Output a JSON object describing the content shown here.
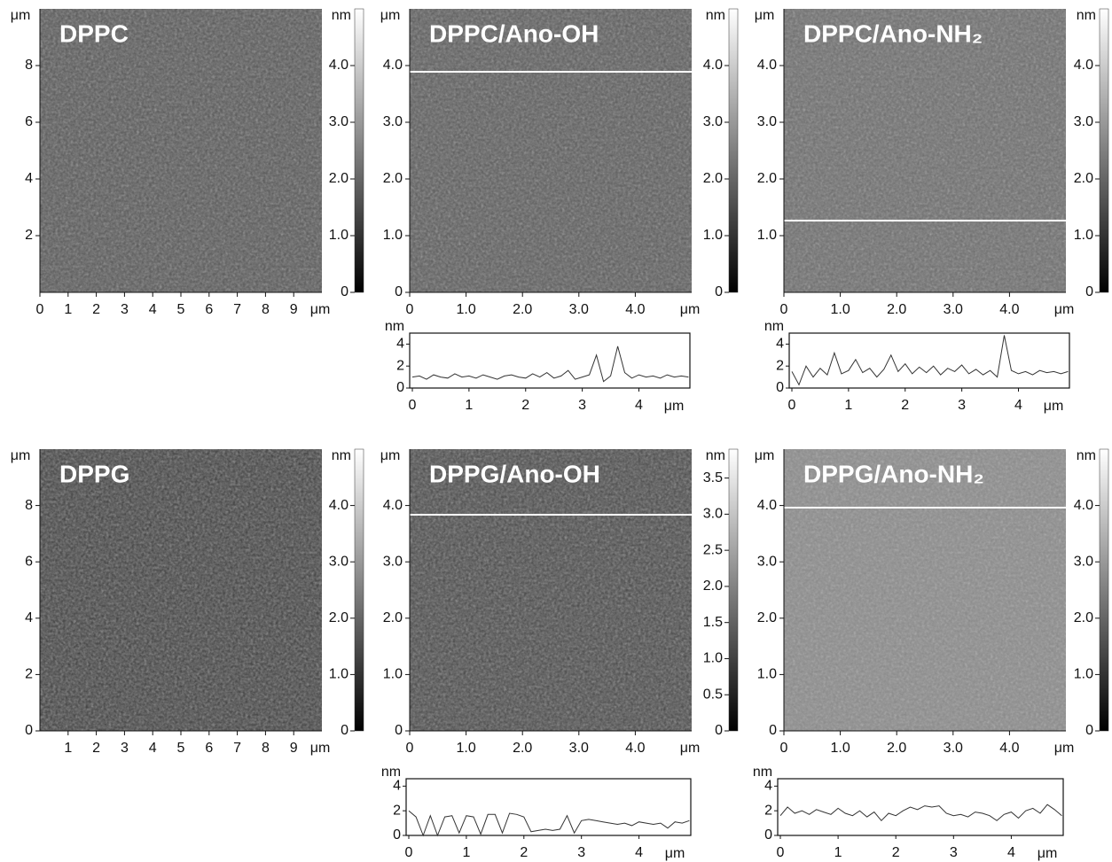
{
  "chart_data": [
    {
      "type": "image",
      "title": "DPPC",
      "x_unit": "μm",
      "y_unit": "μm",
      "xlim": [
        0,
        10
      ],
      "ylim": [
        0,
        10
      ],
      "xticks": [
        0,
        1,
        2,
        3,
        4,
        5,
        6,
        7,
        8,
        9
      ],
      "yticks": [
        2,
        4,
        6,
        8
      ],
      "colorbar": {
        "label": "nm",
        "lim": [
          0,
          5
        ],
        "ticks": [
          0,
          {
            "value": 1,
            "label": "1.0"
          },
          {
            "value": 2,
            "label": "2.0"
          },
          {
            "value": 3,
            "label": "3.0"
          },
          {
            "value": 4,
            "label": "4.0"
          }
        ]
      }
    },
    {
      "type": "image",
      "title": "DPPC/Ano-OH",
      "x_unit": "μm",
      "y_unit": "μm",
      "xlim": [
        0,
        5
      ],
      "ylim": [
        0,
        5
      ],
      "xticks": [
        0,
        {
          "value": 1,
          "label": "1.0"
        },
        {
          "value": 2,
          "label": "2.0"
        },
        {
          "value": 3,
          "label": "3.0"
        },
        {
          "value": 4,
          "label": "4.0"
        }
      ],
      "yticks": [
        0,
        {
          "value": 1,
          "label": "1.0"
        },
        {
          "value": 2,
          "label": "2.0"
        },
        {
          "value": 3,
          "label": "3.0"
        },
        {
          "value": 4,
          "label": "4.0"
        }
      ],
      "colorbar": {
        "label": "nm",
        "lim": [
          0,
          5
        ],
        "ticks": [
          0,
          {
            "value": 1,
            "label": "1.0"
          },
          {
            "value": 2,
            "label": "2.0"
          },
          {
            "value": 3,
            "label": "3.0"
          },
          {
            "value": 4,
            "label": "4.0"
          }
        ]
      }
    },
    {
      "type": "image",
      "title": "DPPC/Ano-NH₂",
      "x_unit": "μm",
      "y_unit": "μm",
      "xlim": [
        0,
        5
      ],
      "ylim": [
        0,
        5
      ],
      "xticks": [
        0,
        {
          "value": 1,
          "label": "1.0"
        },
        {
          "value": 2,
          "label": "2.0"
        },
        {
          "value": 3,
          "label": "3.0"
        },
        {
          "value": 4,
          "label": "4.0"
        }
      ],
      "yticks": [
        {
          "value": 1,
          "label": "1.0"
        },
        {
          "value": 2,
          "label": "2.0"
        },
        {
          "value": 3,
          "label": "3.0"
        },
        {
          "value": 4,
          "label": "4.0"
        }
      ],
      "colorbar": {
        "label": "nm",
        "lim": [
          0,
          5
        ],
        "ticks": [
          0,
          {
            "value": 1,
            "label": "1.0"
          },
          {
            "value": 2,
            "label": "2.0"
          },
          {
            "value": 3,
            "label": "3.0"
          },
          {
            "value": 4,
            "label": "4.0"
          }
        ]
      }
    },
    {
      "type": "image",
      "title": "DPPG",
      "x_unit": "μm",
      "y_unit": "μm",
      "xlim": [
        0,
        10
      ],
      "ylim": [
        0,
        10
      ],
      "xticks": [
        1,
        2,
        3,
        4,
        5,
        6,
        7,
        8,
        9
      ],
      "yticks": [
        0,
        2,
        4,
        6,
        8
      ],
      "colorbar": {
        "label": "nm",
        "lim": [
          0,
          5
        ],
        "ticks": [
          0,
          {
            "value": 1,
            "label": "1.0"
          },
          {
            "value": 2,
            "label": "2.0"
          },
          {
            "value": 3,
            "label": "3.0"
          },
          {
            "value": 4,
            "label": "4.0"
          }
        ]
      }
    },
    {
      "type": "image",
      "title": "DPPG/Ano-OH",
      "x_unit": "μm",
      "y_unit": "μm",
      "xlim": [
        0,
        5
      ],
      "ylim": [
        0,
        5
      ],
      "xticks": [
        0,
        {
          "value": 1,
          "label": "1.0"
        },
        {
          "value": 2,
          "label": "2.0"
        },
        {
          "value": 3,
          "label": "3.0"
        },
        {
          "value": 4,
          "label": "4.0"
        }
      ],
      "yticks": [
        0,
        {
          "value": 1,
          "label": "1.0"
        },
        {
          "value": 2,
          "label": "2.0"
        },
        {
          "value": 3,
          "label": "3.0"
        },
        {
          "value": 4,
          "label": "4.0"
        }
      ],
      "colorbar": {
        "label": "nm",
        "lim": [
          0,
          3.9
        ],
        "ticks": [
          0,
          0.5,
          {
            "value": 1,
            "label": "1.0"
          },
          1.5,
          {
            "value": 2,
            "label": "2.0"
          },
          2.5,
          {
            "value": 3,
            "label": "3.0"
          },
          3.5
        ]
      }
    },
    {
      "type": "image",
      "title": "DPPG/Ano-NH₂",
      "x_unit": "μm",
      "y_unit": "μm",
      "xlim": [
        0,
        5
      ],
      "ylim": [
        0,
        5
      ],
      "xticks": [
        0,
        {
          "value": 1,
          "label": "1.0"
        },
        {
          "value": 2,
          "label": "2.0"
        },
        {
          "value": 3,
          "label": "3.0"
        },
        {
          "value": 4,
          "label": "4.0"
        }
      ],
      "yticks": [
        0,
        {
          "value": 1,
          "label": "1.0"
        },
        {
          "value": 2,
          "label": "2.0"
        },
        {
          "value": 3,
          "label": "3.0"
        },
        {
          "value": 4,
          "label": "4.0"
        }
      ],
      "colorbar": {
        "label": "nm",
        "lim": [
          0,
          5
        ],
        "ticks": [
          0,
          {
            "value": 1,
            "label": "1.0"
          },
          {
            "value": 2,
            "label": "2.0"
          },
          {
            "value": 3,
            "label": "3.0"
          },
          {
            "value": 4,
            "label": "4.0"
          }
        ]
      }
    },
    {
      "type": "line",
      "x_unit": "μm",
      "y_unit": "nm",
      "xlim": [
        0,
        4.9
      ],
      "ylim": [
        0,
        5
      ],
      "xticks": [
        0,
        1,
        2,
        3,
        4
      ],
      "yticks": [
        0,
        2,
        4
      ],
      "color": "#333333",
      "x": [
        0,
        0.125,
        0.25,
        0.375,
        0.5,
        0.625,
        0.75,
        0.875,
        1,
        1.125,
        1.25,
        1.375,
        1.5,
        1.625,
        1.75,
        1.875,
        2,
        2.125,
        2.25,
        2.375,
        2.5,
        2.625,
        2.75,
        2.875,
        3,
        3.125,
        3.25,
        3.375,
        3.5,
        3.625,
        3.75,
        3.875,
        4,
        4.125,
        4.25,
        4.375,
        4.5,
        4.625,
        4.75,
        4.875
      ],
      "values": [
        1,
        1.1,
        0.8,
        1.2,
        1,
        0.9,
        1.3,
        1,
        1.1,
        0.9,
        1.2,
        1,
        0.8,
        1.1,
        1.2,
        1,
        0.9,
        1.3,
        1,
        1.4,
        0.9,
        1.1,
        1.6,
        0.8,
        1,
        1.2,
        3,
        0.6,
        1.1,
        3.8,
        1.4,
        0.9,
        1.2,
        1,
        1.1,
        0.9,
        1.2,
        1,
        1.1,
        1
      ]
    },
    {
      "type": "line",
      "x_unit": "μm",
      "y_unit": "nm",
      "xlim": [
        0,
        4.9
      ],
      "ylim": [
        0,
        5
      ],
      "xticks": [
        0,
        1,
        2,
        3,
        4
      ],
      "yticks": [
        0,
        2,
        4
      ],
      "color": "#333333",
      "x": [
        0,
        0.125,
        0.25,
        0.375,
        0.5,
        0.625,
        0.75,
        0.875,
        1,
        1.125,
        1.25,
        1.375,
        1.5,
        1.625,
        1.75,
        1.875,
        2,
        2.125,
        2.25,
        2.375,
        2.5,
        2.625,
        2.75,
        2.875,
        3,
        3.125,
        3.25,
        3.375,
        3.5,
        3.625,
        3.75,
        3.875,
        4,
        4.125,
        4.25,
        4.375,
        4.5,
        4.625,
        4.75,
        4.875
      ],
      "values": [
        1.5,
        0.3,
        2,
        1,
        1.8,
        1.2,
        3.2,
        1.3,
        1.6,
        2.6,
        1.4,
        1.8,
        1,
        1.7,
        3,
        1.5,
        2.2,
        1.3,
        1.9,
        1.4,
        2,
        1.2,
        1.8,
        1.5,
        2.1,
        1.3,
        1.7,
        1.2,
        1.6,
        1,
        4.8,
        1.6,
        1.3,
        1.5,
        1.2,
        1.6,
        1.4,
        1.5,
        1.3,
        1.5
      ]
    },
    {
      "type": "line",
      "x_unit": "μm",
      "y_unit": "nm",
      "xlim": [
        0,
        4.9
      ],
      "ylim": [
        0,
        4.6
      ],
      "xticks": [
        0,
        1,
        2,
        3,
        4
      ],
      "yticks": [
        0,
        2,
        4
      ],
      "color": "#333333",
      "x": [
        0,
        0.125,
        0.25,
        0.375,
        0.5,
        0.625,
        0.75,
        0.875,
        1,
        1.125,
        1.25,
        1.375,
        1.5,
        1.625,
        1.75,
        1.875,
        2,
        2.125,
        2.25,
        2.375,
        2.5,
        2.625,
        2.75,
        2.875,
        3,
        3.125,
        3.25,
        3.375,
        3.5,
        3.625,
        3.75,
        3.875,
        4,
        4.125,
        4.25,
        4.375,
        4.5,
        4.625,
        4.75,
        4.875
      ],
      "values": [
        2,
        1.5,
        0,
        1.6,
        0,
        1.5,
        1.6,
        0.2,
        1.6,
        1.5,
        0.1,
        1.7,
        1.7,
        0.2,
        1.8,
        1.7,
        1.5,
        0.3,
        0.4,
        0.5,
        0.4,
        0.5,
        1.6,
        0.2,
        1.2,
        1.3,
        1.2,
        1.1,
        1,
        0.9,
        1,
        0.8,
        1.1,
        1,
        0.9,
        1,
        0.6,
        1.1,
        1,
        1.2
      ]
    },
    {
      "type": "line",
      "x_unit": "μm",
      "y_unit": "nm",
      "xlim": [
        0,
        4.9
      ],
      "ylim": [
        0,
        4.6
      ],
      "xticks": [
        0,
        1,
        2,
        3,
        4
      ],
      "yticks": [
        0,
        2,
        4
      ],
      "color": "#333333",
      "x": [
        0,
        0.125,
        0.25,
        0.375,
        0.5,
        0.625,
        0.75,
        0.875,
        1,
        1.125,
        1.25,
        1.375,
        1.5,
        1.625,
        1.75,
        1.875,
        2,
        2.125,
        2.25,
        2.375,
        2.5,
        2.625,
        2.75,
        2.875,
        3,
        3.125,
        3.25,
        3.375,
        3.5,
        3.625,
        3.75,
        3.875,
        4,
        4.125,
        4.25,
        4.375,
        4.5,
        4.625,
        4.75,
        4.875
      ],
      "values": [
        1.6,
        2.3,
        1.8,
        2,
        1.7,
        2.1,
        1.9,
        1.7,
        2.2,
        1.8,
        1.6,
        2,
        1.5,
        1.9,
        1.2,
        1.8,
        1.6,
        2,
        2.3,
        2.1,
        2.4,
        2.3,
        2.4,
        1.8,
        1.6,
        1.7,
        1.5,
        1.9,
        1.8,
        1.6,
        1.2,
        1.7,
        1.9,
        1.4,
        2,
        2.2,
        1.8,
        2.5,
        2.1,
        1.6
      ]
    }
  ]
}
